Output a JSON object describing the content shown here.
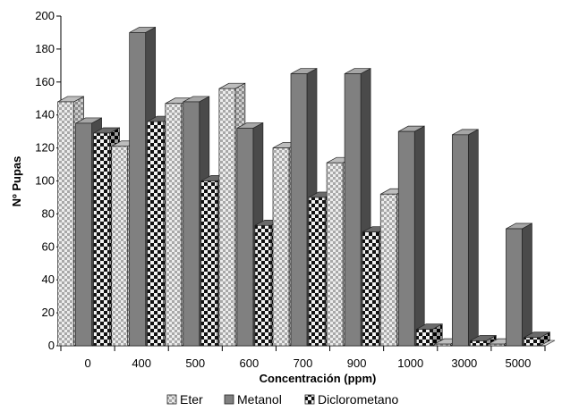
{
  "chart_data": {
    "type": "bar",
    "style": "3d-clustered",
    "xlabel": "Concentración (ppm)",
    "ylabel": "Nº Pupas",
    "ylim": [
      0,
      200
    ],
    "yticks": [
      0,
      20,
      40,
      60,
      80,
      100,
      120,
      140,
      160,
      180,
      200
    ],
    "categories": [
      "0",
      "400",
      "500",
      "600",
      "700",
      "900",
      "1000",
      "3000",
      "5000"
    ],
    "series": [
      {
        "name": "Eter",
        "values": [
          148,
          121,
          147,
          156,
          120,
          111,
          92,
          1,
          1
        ],
        "pattern": "light-checker"
      },
      {
        "name": "Metanol",
        "values": [
          135,
          190,
          148,
          132,
          165,
          165,
          130,
          128,
          71
        ],
        "pattern": "solid-gray"
      },
      {
        "name": "Diclorometano",
        "values": [
          129,
          136,
          100,
          73,
          90,
          69,
          10,
          3,
          5
        ],
        "pattern": "dark-checker"
      }
    ],
    "legend_position": "bottom",
    "grid": false
  }
}
